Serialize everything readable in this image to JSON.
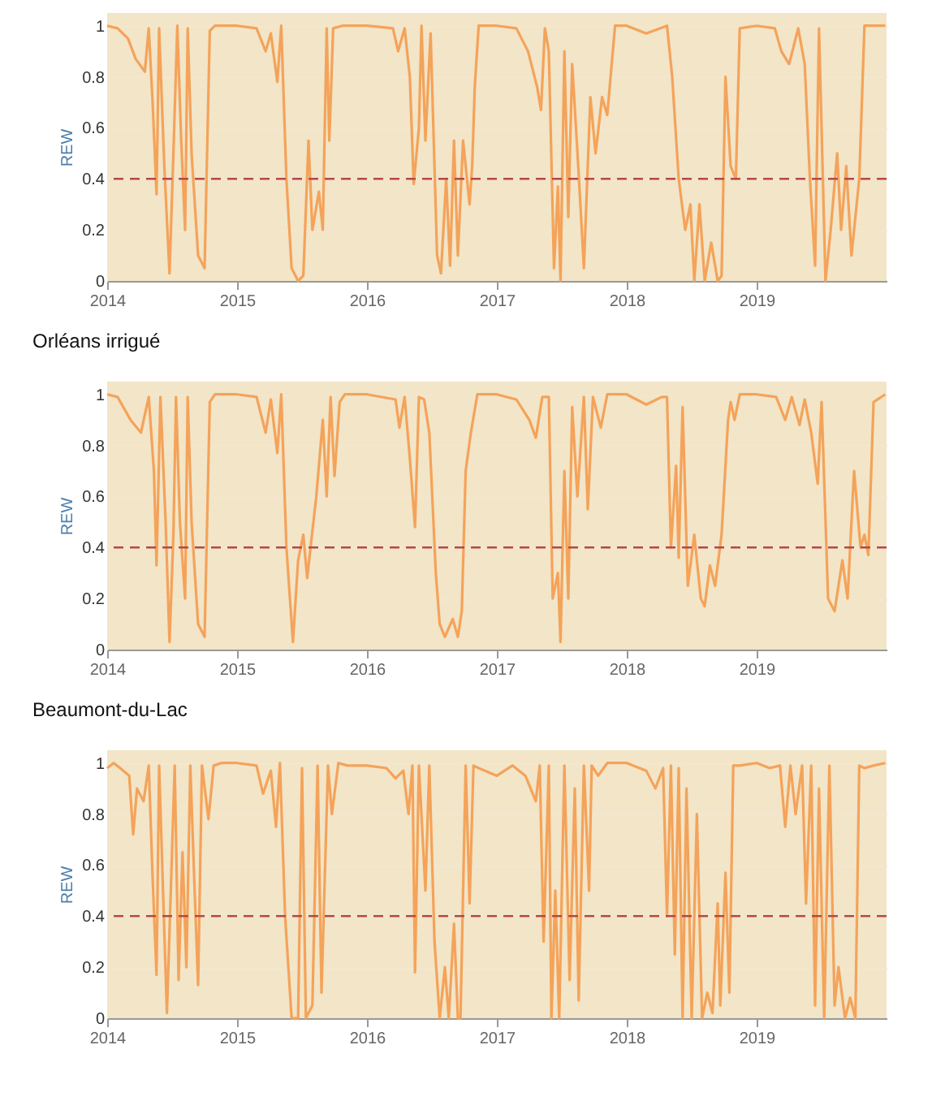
{
  "chart_data": [
    {
      "type": "line",
      "ylabel": "REW",
      "xlim": [
        2014,
        2020
      ],
      "xticks": [
        2014,
        2015,
        2016,
        2017,
        2018,
        2019
      ],
      "ylim": [
        0,
        1.05
      ],
      "yticks": [
        0,
        0.2,
        0.4,
        0.6,
        0.8,
        1
      ],
      "grid": "y",
      "legend": false,
      "line_style": "solid",
      "marker": "none",
      "ref_lines": [
        {
          "axis": "y",
          "value": 0.4,
          "color": "#b5474b",
          "line_style": "dashed"
        }
      ],
      "x": [
        2014.0,
        2014.08,
        2014.16,
        2014.22,
        2014.29,
        2014.32,
        2014.35,
        2014.38,
        2014.4,
        2014.44,
        2014.48,
        2014.51,
        2014.54,
        2014.57,
        2014.6,
        2014.62,
        2014.65,
        2014.7,
        2014.75,
        2014.79,
        2014.83,
        2015.0,
        2015.15,
        2015.22,
        2015.26,
        2015.31,
        2015.34,
        2015.38,
        2015.42,
        2015.47,
        2015.51,
        2015.55,
        2015.58,
        2015.63,
        2015.66,
        2015.69,
        2015.71,
        2015.74,
        2015.81,
        2016.0,
        2016.2,
        2016.24,
        2016.29,
        2016.33,
        2016.36,
        2016.4,
        2016.42,
        2016.45,
        2016.49,
        2016.54,
        2016.57,
        2016.61,
        2016.64,
        2016.67,
        2016.7,
        2016.74,
        2016.79,
        2016.81,
        2016.83,
        2016.86,
        2017.0,
        2017.15,
        2017.24,
        2017.31,
        2017.34,
        2017.37,
        2017.4,
        2017.44,
        2017.47,
        2017.49,
        2017.52,
        2017.55,
        2017.58,
        2017.63,
        2017.67,
        2017.72,
        2017.76,
        2017.81,
        2017.85,
        2017.91,
        2018.0,
        2018.15,
        2018.31,
        2018.35,
        2018.4,
        2018.45,
        2018.49,
        2018.52,
        2018.56,
        2018.6,
        2018.65,
        2018.7,
        2018.73,
        2018.76,
        2018.8,
        2018.84,
        2018.87,
        2019.0,
        2019.14,
        2019.19,
        2019.25,
        2019.32,
        2019.37,
        2019.41,
        2019.45,
        2019.48,
        2019.53,
        2019.57,
        2019.62,
        2019.65,
        2019.69,
        2019.73,
        2019.79,
        2019.83,
        2019.99
      ],
      "series": [
        {
          "color": "#f4a35a",
          "values": [
            1.0,
            0.99,
            0.95,
            0.87,
            0.82,
            0.99,
            0.7,
            0.34,
            0.99,
            0.45,
            0.03,
            0.5,
            1.0,
            0.55,
            0.2,
            0.99,
            0.5,
            0.1,
            0.05,
            0.98,
            1.0,
            1.0,
            0.99,
            0.9,
            0.97,
            0.78,
            1.0,
            0.4,
            0.05,
            0.0,
            0.02,
            0.55,
            0.2,
            0.35,
            0.2,
            0.99,
            0.55,
            0.99,
            1.0,
            1.0,
            0.99,
            0.9,
            0.99,
            0.8,
            0.38,
            0.6,
            1.0,
            0.55,
            0.97,
            0.1,
            0.03,
            0.4,
            0.06,
            0.55,
            0.1,
            0.55,
            0.3,
            0.45,
            0.76,
            1.0,
            1.0,
            0.99,
            0.9,
            0.76,
            0.67,
            0.99,
            0.9,
            0.05,
            0.37,
            0.0,
            0.9,
            0.25,
            0.85,
            0.42,
            0.05,
            0.72,
            0.5,
            0.72,
            0.65,
            1.0,
            1.0,
            0.97,
            1.0,
            0.8,
            0.4,
            0.2,
            0.3,
            0.0,
            0.3,
            0.0,
            0.15,
            0.0,
            0.02,
            0.8,
            0.45,
            0.4,
            0.99,
            1.0,
            0.99,
            0.9,
            0.85,
            0.99,
            0.85,
            0.4,
            0.06,
            0.99,
            0.0,
            0.2,
            0.5,
            0.2,
            0.45,
            0.1,
            0.4,
            1.0,
            1.0
          ]
        }
      ]
    },
    {
      "type": "line",
      "title": "Orléans irrigué",
      "ylabel": "REW",
      "xlim": [
        2014,
        2020
      ],
      "xticks": [
        2014,
        2015,
        2016,
        2017,
        2018,
        2019
      ],
      "ylim": [
        0,
        1.05
      ],
      "yticks": [
        0,
        0.2,
        0.4,
        0.6,
        0.8,
        1
      ],
      "grid": "y",
      "legend": false,
      "line_style": "solid",
      "marker": "none",
      "ref_lines": [
        {
          "axis": "y",
          "value": 0.4,
          "color": "#b5474b",
          "line_style": "dashed"
        }
      ],
      "x": [
        2014.0,
        2014.08,
        2014.18,
        2014.26,
        2014.32,
        2014.36,
        2014.38,
        2014.41,
        2014.45,
        2014.48,
        2014.51,
        2014.53,
        2014.56,
        2014.6,
        2014.62,
        2014.65,
        2014.7,
        2014.75,
        2014.79,
        2014.83,
        2015.0,
        2015.15,
        2015.22,
        2015.26,
        2015.31,
        2015.34,
        2015.38,
        2015.43,
        2015.47,
        2015.51,
        2015.54,
        2015.57,
        2015.61,
        2015.66,
        2015.69,
        2015.72,
        2015.75,
        2015.79,
        2015.83,
        2016.0,
        2016.22,
        2016.25,
        2016.29,
        2016.33,
        2016.37,
        2016.4,
        2016.44,
        2016.48,
        2016.53,
        2016.56,
        2016.6,
        2016.66,
        2016.7,
        2016.73,
        2016.76,
        2016.8,
        2016.85,
        2017.0,
        2017.15,
        2017.25,
        2017.3,
        2017.35,
        2017.4,
        2017.43,
        2017.47,
        2017.49,
        2017.52,
        2017.55,
        2017.58,
        2017.62,
        2017.67,
        2017.7,
        2017.74,
        2017.8,
        2017.85,
        2018.0,
        2018.15,
        2018.27,
        2018.31,
        2018.34,
        2018.38,
        2018.4,
        2018.43,
        2018.47,
        2018.52,
        2018.57,
        2018.6,
        2018.64,
        2018.68,
        2018.73,
        2018.78,
        2018.8,
        2018.83,
        2018.87,
        2019.0,
        2019.15,
        2019.22,
        2019.27,
        2019.33,
        2019.37,
        2019.42,
        2019.47,
        2019.5,
        2019.55,
        2019.6,
        2019.66,
        2019.7,
        2019.75,
        2019.8,
        2019.83,
        2019.86,
        2019.9,
        2019.99
      ],
      "series": [
        {
          "color": "#f4a35a",
          "values": [
            1.0,
            0.99,
            0.9,
            0.85,
            0.99,
            0.7,
            0.33,
            0.99,
            0.5,
            0.03,
            0.45,
            0.99,
            0.5,
            0.2,
            0.99,
            0.5,
            0.1,
            0.05,
            0.97,
            1.0,
            1.0,
            0.99,
            0.85,
            0.98,
            0.77,
            1.0,
            0.4,
            0.03,
            0.35,
            0.45,
            0.28,
            0.42,
            0.6,
            0.9,
            0.6,
            0.99,
            0.68,
            0.97,
            1.0,
            1.0,
            0.98,
            0.87,
            0.99,
            0.75,
            0.48,
            0.99,
            0.98,
            0.85,
            0.3,
            0.1,
            0.05,
            0.12,
            0.05,
            0.15,
            0.7,
            0.85,
            1.0,
            1.0,
            0.98,
            0.9,
            0.83,
            0.99,
            0.99,
            0.2,
            0.3,
            0.03,
            0.7,
            0.2,
            0.95,
            0.6,
            0.99,
            0.55,
            0.99,
            0.87,
            1.0,
            1.0,
            0.96,
            0.99,
            0.99,
            0.4,
            0.72,
            0.36,
            0.95,
            0.25,
            0.45,
            0.2,
            0.17,
            0.33,
            0.25,
            0.45,
            0.9,
            0.97,
            0.9,
            1.0,
            1.0,
            0.99,
            0.9,
            0.99,
            0.88,
            0.98,
            0.85,
            0.65,
            0.97,
            0.2,
            0.15,
            0.35,
            0.2,
            0.7,
            0.4,
            0.45,
            0.37,
            0.97,
            1.0
          ]
        }
      ]
    },
    {
      "type": "line",
      "title": "Beaumont-du-Lac",
      "ylabel": "REW",
      "xlim": [
        2014,
        2020
      ],
      "xticks": [
        2014,
        2015,
        2016,
        2017,
        2018,
        2019
      ],
      "ylim": [
        0,
        1.05
      ],
      "yticks": [
        0,
        0.2,
        0.4,
        0.6,
        0.8,
        1
      ],
      "grid": "y",
      "legend": false,
      "line_style": "solid",
      "marker": "none",
      "ref_lines": [
        {
          "axis": "y",
          "value": 0.4,
          "color": "#b5474b",
          "line_style": "dashed"
        }
      ],
      "x": [
        2014.0,
        2014.05,
        2014.1,
        2014.17,
        2014.2,
        2014.23,
        2014.28,
        2014.32,
        2014.35,
        2014.38,
        2014.4,
        2014.43,
        2014.46,
        2014.49,
        2014.52,
        2014.55,
        2014.58,
        2014.61,
        2014.64,
        2014.67,
        2014.7,
        2014.73,
        2014.78,
        2014.82,
        2014.88,
        2015.0,
        2015.15,
        2015.2,
        2015.26,
        2015.3,
        2015.33,
        2015.37,
        2015.42,
        2015.47,
        2015.5,
        2015.53,
        2015.58,
        2015.62,
        2015.65,
        2015.7,
        2015.73,
        2015.78,
        2015.85,
        2016.0,
        2016.15,
        2016.22,
        2016.28,
        2016.32,
        2016.35,
        2016.37,
        2016.4,
        2016.45,
        2016.48,
        2016.52,
        2016.56,
        2016.6,
        2016.63,
        2016.67,
        2016.7,
        2016.72,
        2016.76,
        2016.79,
        2016.82,
        2016.86,
        2017.0,
        2017.12,
        2017.22,
        2017.3,
        2017.33,
        2017.36,
        2017.4,
        2017.42,
        2017.45,
        2017.48,
        2017.52,
        2017.56,
        2017.6,
        2017.63,
        2017.67,
        2017.71,
        2017.73,
        2017.78,
        2017.85,
        2018.0,
        2018.15,
        2018.22,
        2018.28,
        2018.31,
        2018.34,
        2018.37,
        2018.4,
        2018.43,
        2018.46,
        2018.5,
        2018.54,
        2018.58,
        2018.62,
        2018.66,
        2018.7,
        2018.72,
        2018.76,
        2018.79,
        2018.82,
        2018.87,
        2019.0,
        2019.1,
        2019.18,
        2019.22,
        2019.26,
        2019.3,
        2019.35,
        2019.38,
        2019.42,
        2019.45,
        2019.48,
        2019.52,
        2019.56,
        2019.6,
        2019.63,
        2019.68,
        2019.72,
        2019.76,
        2019.79,
        2019.83,
        2019.9,
        2019.99
      ],
      "series": [
        {
          "color": "#f4a35a",
          "values": [
            0.98,
            1.0,
            0.98,
            0.95,
            0.72,
            0.9,
            0.85,
            0.99,
            0.55,
            0.17,
            0.99,
            0.5,
            0.02,
            0.5,
            0.99,
            0.15,
            0.65,
            0.2,
            0.99,
            0.55,
            0.13,
            0.99,
            0.78,
            0.99,
            1.0,
            1.0,
            0.99,
            0.88,
            0.97,
            0.75,
            1.0,
            0.4,
            0.0,
            0.0,
            0.98,
            0.0,
            0.05,
            0.99,
            0.1,
            0.99,
            0.8,
            1.0,
            0.99,
            0.99,
            0.98,
            0.94,
            0.97,
            0.8,
            0.99,
            0.18,
            0.99,
            0.5,
            0.99,
            0.3,
            0.0,
            0.2,
            0.0,
            0.37,
            0.0,
            0.0,
            0.99,
            0.45,
            0.99,
            0.98,
            0.95,
            0.99,
            0.95,
            0.85,
            0.99,
            0.3,
            0.99,
            0.0,
            0.5,
            0.0,
            0.99,
            0.15,
            0.9,
            0.07,
            0.99,
            0.5,
            0.99,
            0.95,
            1.0,
            1.0,
            0.97,
            0.9,
            0.98,
            0.4,
            0.99,
            0.25,
            0.98,
            0.0,
            0.9,
            0.0,
            0.8,
            0.0,
            0.1,
            0.02,
            0.45,
            0.05,
            0.57,
            0.1,
            0.99,
            0.99,
            1.0,
            0.98,
            0.99,
            0.75,
            0.99,
            0.8,
            0.99,
            0.45,
            0.99,
            0.05,
            0.9,
            0.0,
            0.99,
            0.05,
            0.2,
            0.0,
            0.08,
            0.0,
            0.99,
            0.98,
            0.99,
            1.0
          ]
        }
      ]
    }
  ]
}
